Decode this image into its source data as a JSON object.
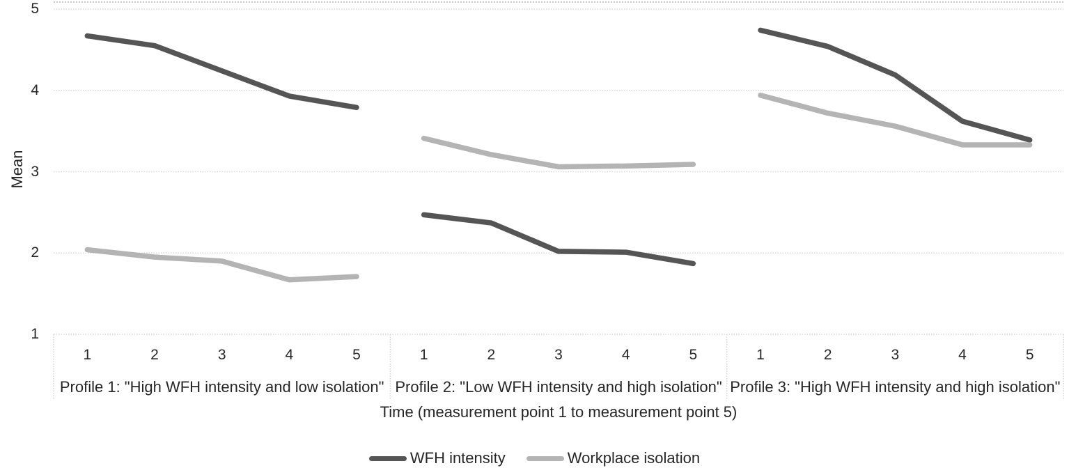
{
  "chart_data": {
    "type": "line",
    "title": "",
    "ylabel": "Mean",
    "xlabel": "Time (measurement point 1 to measurement point 5)",
    "ylim": [
      1,
      5
    ],
    "y_ticks": [
      5,
      4,
      3,
      2,
      1
    ],
    "grid": "horizontal-dotted",
    "legend_position": "bottom-center",
    "x_tick_labels": [
      "1",
      "2",
      "3",
      "4",
      "5"
    ],
    "panels": [
      {
        "label": "Profile 1: \"High WFH intensity and low isolation\""
      },
      {
        "label": "Profile 2: \"Low WFH intensity and high isolation\""
      },
      {
        "label": "Profile 3: \"High WFH intensity and high isolation\""
      }
    ],
    "series": [
      {
        "name": "WFH intensity",
        "color": "#555555",
        "values_by_panel": [
          [
            4.67,
            4.55,
            4.24,
            3.93,
            3.79
          ],
          [
            2.47,
            2.37,
            2.02,
            2.01,
            1.87
          ],
          [
            4.74,
            4.54,
            4.19,
            3.62,
            3.39
          ]
        ]
      },
      {
        "name": "Workplace isolation",
        "color": "#b4b4b4",
        "values_by_panel": [
          [
            2.04,
            1.95,
            1.9,
            1.67,
            1.71
          ],
          [
            3.41,
            3.21,
            3.06,
            3.07,
            3.09
          ],
          [
            3.94,
            3.72,
            3.56,
            3.33,
            3.33
          ]
        ]
      }
    ],
    "colors": {
      "gridline": "#d9d9d9",
      "plot_top_border": "#a6a6a6",
      "axis_divider": "#d0d0d0",
      "text": "#262626"
    }
  }
}
